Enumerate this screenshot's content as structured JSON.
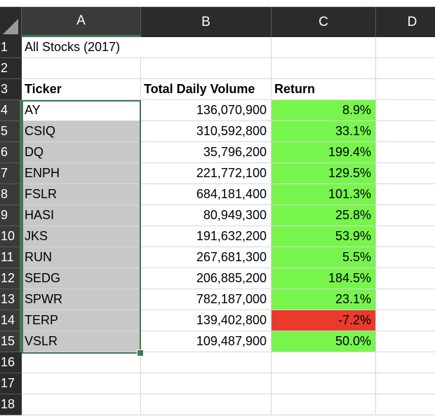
{
  "columns": [
    "A",
    "B",
    "C",
    "D"
  ],
  "rows": [
    "1",
    "2",
    "3",
    "4",
    "5",
    "6",
    "7",
    "8",
    "9",
    "10",
    "11",
    "12",
    "13",
    "14",
    "15",
    "16",
    "17",
    "18"
  ],
  "title": "All Stocks (2017)",
  "headers": {
    "ticker": "Ticker",
    "volume": "Total Daily Volume",
    "return": "Return"
  },
  "stocks": [
    {
      "ticker": "AY",
      "volume": "136,070,900",
      "ret": "8.9%"
    },
    {
      "ticker": "CSIQ",
      "volume": "310,592,800",
      "ret": "33.1%"
    },
    {
      "ticker": "DQ",
      "volume": "35,796,200",
      "ret": "199.4%"
    },
    {
      "ticker": "ENPH",
      "volume": "221,772,100",
      "ret": "129.5%"
    },
    {
      "ticker": "FSLR",
      "volume": "684,181,400",
      "ret": "101.3%"
    },
    {
      "ticker": "HASI",
      "volume": "80,949,300",
      "ret": "25.8%"
    },
    {
      "ticker": "JKS",
      "volume": "191,632,200",
      "ret": "53.9%"
    },
    {
      "ticker": "RUN",
      "volume": "267,681,300",
      "ret": "5.5%"
    },
    {
      "ticker": "SEDG",
      "volume": "206,885,200",
      "ret": "184.5%"
    },
    {
      "ticker": "SPWR",
      "volume": "782,187,000",
      "ret": "23.1%"
    },
    {
      "ticker": "TERP",
      "volume": "139,402,800",
      "ret": "-7.2%"
    },
    {
      "ticker": "VSLR",
      "volume": "109,487,900",
      "ret": "50.0%"
    }
  ],
  "colors": {
    "positive_fill": "#77f54c",
    "negative_fill": "#ea3a2d",
    "selection_fill": "#c8c8c8",
    "selection_border": "#3f7a52",
    "header_bg": "#2b2b2b"
  },
  "selected_range": "A4:A15"
}
